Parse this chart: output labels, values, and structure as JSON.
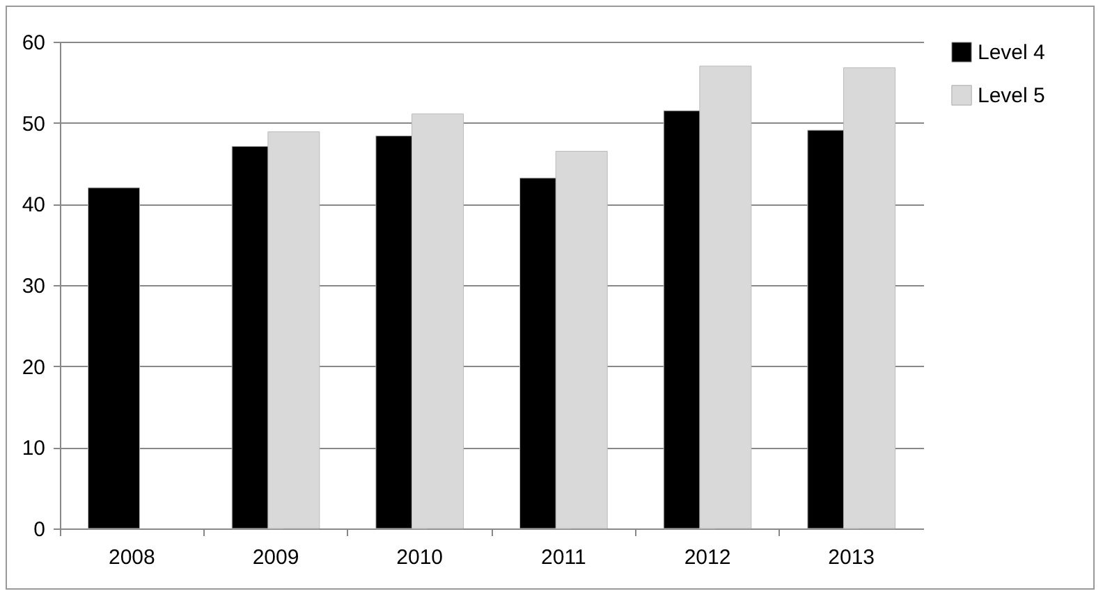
{
  "chart_data": {
    "type": "bar",
    "categories": [
      "2008",
      "2009",
      "2010",
      "2011",
      "2012",
      "2013"
    ],
    "series": [
      {
        "name": "Level 4",
        "color": "#000000",
        "values": [
          42,
          47.1,
          48.4,
          43.2,
          51.5,
          49.1
        ]
      },
      {
        "name": "Level 5",
        "color": "#d9d9d9",
        "values": [
          null,
          48.9,
          51.1,
          46.5,
          57,
          56.8
        ]
      }
    ],
    "ylim": [
      0,
      60
    ],
    "yticks": [
      0,
      10,
      20,
      30,
      40,
      50,
      60
    ],
    "grid": "y",
    "legend": "right"
  }
}
